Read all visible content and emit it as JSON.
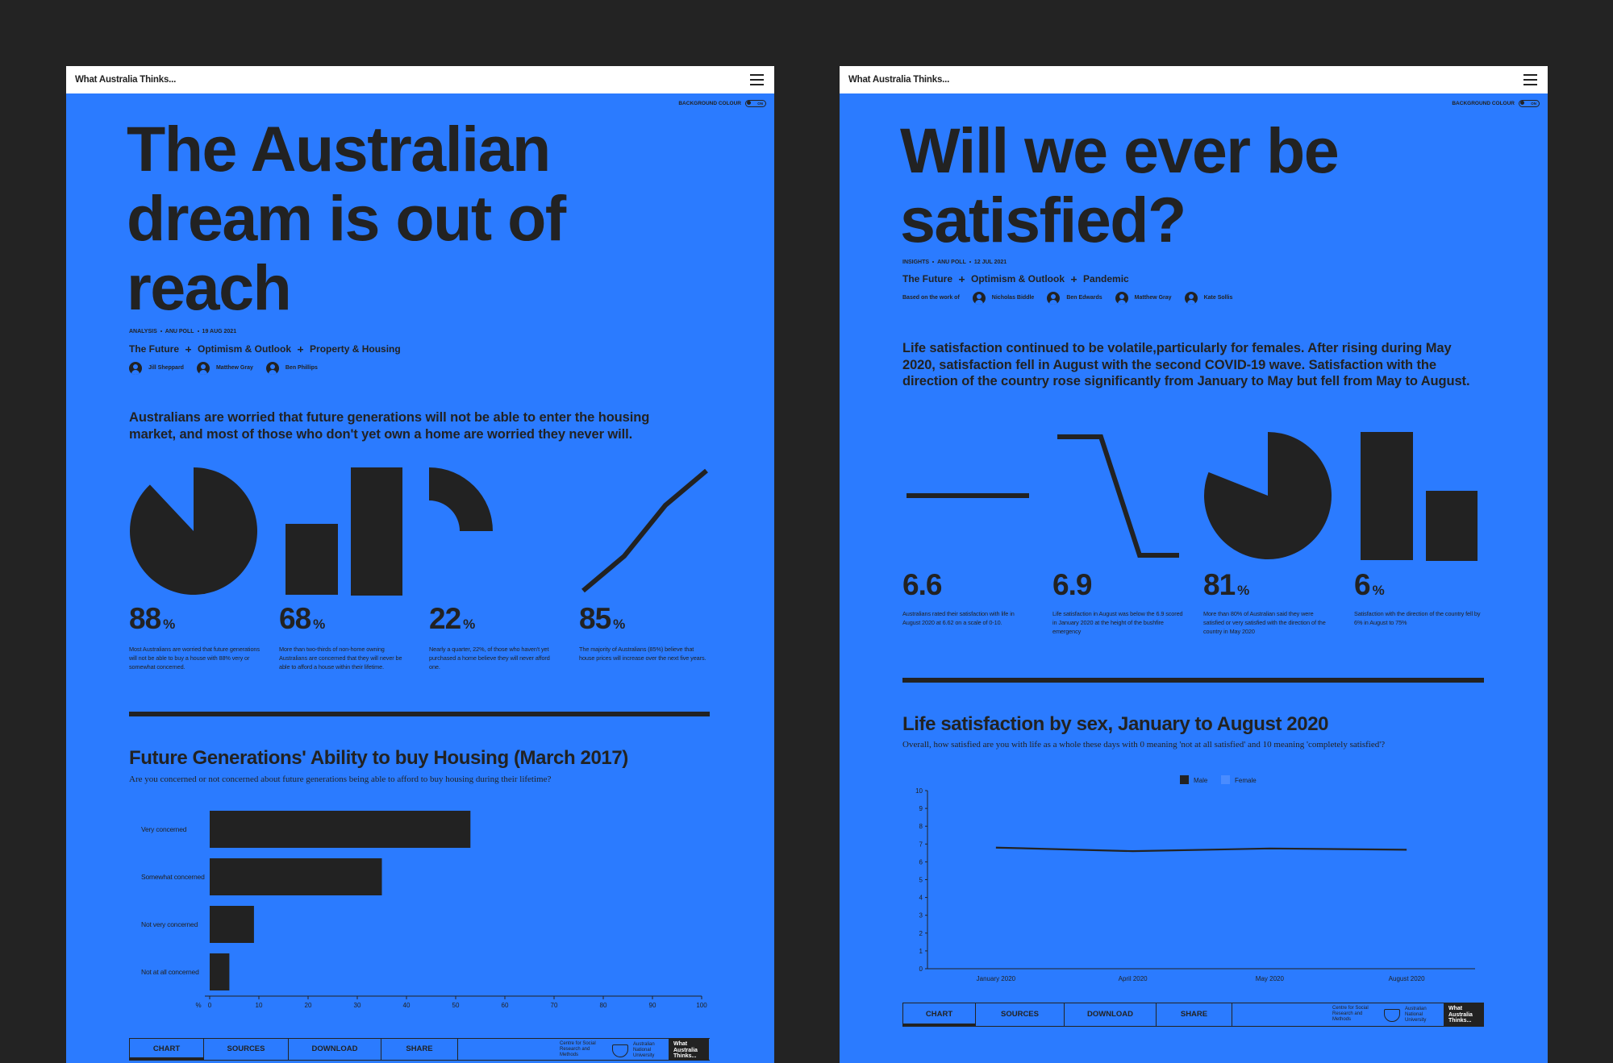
{
  "panels": [
    {
      "header": "What Australia Thinks...",
      "toggle": "BACKGROUND COLOUR",
      "toggle_state": "ON",
      "title": "The Australian dream is out of reach",
      "meta": [
        "ANALYSIS",
        "ANU POLL",
        "19 AUG 2021"
      ],
      "tags": [
        "The Future",
        "Optimism & Outlook",
        "Property & Housing"
      ],
      "authors": [
        "Jill Sheppard",
        "Matthew Gray",
        "Ben Phillips"
      ],
      "lead": "Australians are worried that future generations will not be able to enter the housing market, and most of those who don't yet own a home are worried they never will.",
      "stats": [
        {
          "value": 88,
          "unit": "%",
          "text": "Most Australians are worried that future generations will not be able to buy a house with 88% very or somewhat concerned."
        },
        {
          "value": 68,
          "unit": "%",
          "text": "More than two-thirds of non-home owning Australians are concerned that they will never be able to afford a house within their lifetime."
        },
        {
          "value": 22,
          "unit": "%",
          "text": "Nearly a quarter, 22%, of those who haven't yet purchased a home believe they will never afford one."
        },
        {
          "value": 85,
          "unit": "%",
          "text": "The majority of Australians (85%) believe that house prices will increase over the next five years."
        }
      ],
      "tabs": [
        "CHART",
        "SOURCES",
        "DOWNLOAD",
        "SHARE"
      ],
      "logos": [
        "Centre for Social Research and Methods",
        "Australian National University",
        "What Australia Thinks..."
      ]
    },
    {
      "header": "What Australia Thinks...",
      "toggle": "BACKGROUND COLOUR",
      "toggle_state": "ON",
      "title": "Will we ever be satisfied?",
      "meta": [
        "INSIGHTS",
        "ANU POLL",
        "12 JUL 2021"
      ],
      "tags": [
        "The Future",
        "Optimism & Outlook",
        "Pandemic"
      ],
      "authors_intro": "Based on the work of",
      "authors": [
        "Nicholas Biddle",
        "Ben Edwards",
        "Matthew Gray",
        "Kate Sollis"
      ],
      "lead": "Life satisfaction continued to be volatile,particularly for females. After rising during May 2020, satisfaction fell in August with the second COVID-19 wave. Satisfaction with the direction of the country rose significantly from January to May but fell from May to August.",
      "stats": [
        {
          "value": 6.6,
          "text": "Australians rated their satisfaction with life in August 2020 at 6.62 on a scale of 0-10."
        },
        {
          "value": 6.9,
          "text": "Life satisfaction in August was below the 6.9 scored in January 2020 at the height of the bushfire emergency"
        },
        {
          "value": 81,
          "unit": "%",
          "text": "More than 80% of Australian said they were satisfied or very satisfied with the direction of the country in May 2020"
        },
        {
          "value": 6,
          "unit": "%",
          "text": "Satisfaction with the direction of the country fell by 6% in August to 75%"
        }
      ],
      "tabs": [
        "CHART",
        "SOURCES",
        "DOWNLOAD",
        "SHARE"
      ],
      "logos": [
        "Centre for Social Research and Methods",
        "Australian National University",
        "What Australia Thinks..."
      ]
    }
  ],
  "chart_data": [
    {
      "type": "bar",
      "orientation": "horizontal",
      "title": "Future Generations' Ability to buy Housing (March 2017)",
      "subtitle": "Are you concerned or not concerned about future generations being able to afford to buy housing during their lifetime?",
      "categories": [
        "Very concerned",
        "Somewhat concerned",
        "Not very concerned",
        "Not at all concerned"
      ],
      "values": [
        53,
        35,
        9,
        4
      ],
      "color": "#222222",
      "x_label": "%",
      "xlim": [
        0,
        100
      ],
      "xticks": [
        0,
        10,
        20,
        30,
        40,
        50,
        60,
        70,
        80,
        90,
        100
      ]
    },
    {
      "type": "line",
      "title": "Life satisfaction by sex, January to August 2020",
      "subtitle": "Overall, how satisfied are you with life as a whole these days with 0 meaning 'not at all satisfied' and 10 meaning 'completely satisfied'?",
      "categories": [
        "January 2020",
        "April 2020",
        "May 2020",
        "August 2020"
      ],
      "series": [
        {
          "name": "Male",
          "color": "#222222",
          "values": [
            6.8,
            6.6,
            6.75,
            6.68
          ]
        },
        {
          "name": "Female",
          "color": "#4a8cff",
          "values": [
            null,
            null,
            null,
            null
          ]
        }
      ],
      "ylim": [
        0,
        10
      ],
      "yticks": [
        0,
        1,
        2,
        3,
        4,
        5,
        6,
        7,
        8,
        9,
        10
      ]
    }
  ]
}
